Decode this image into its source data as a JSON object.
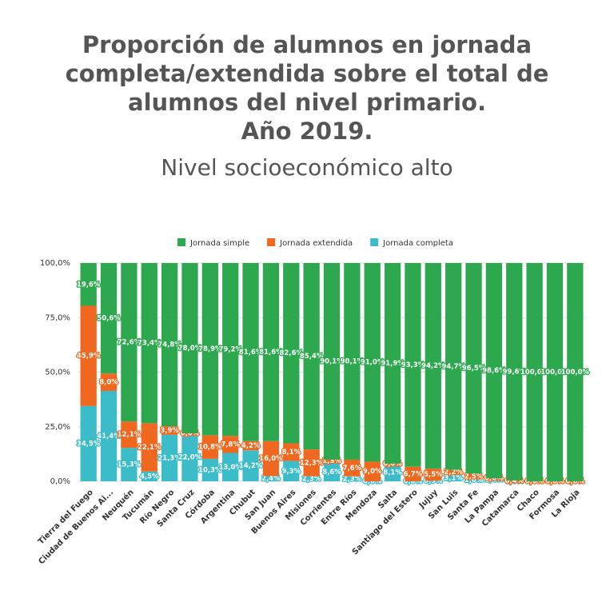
{
  "chart_data": {
    "type": "stacked_bar",
    "title": "Proporción de alumnos en jornada\ncompleta/extendida sobre el total de\nalumnos del nivel primario.\nAño 2019.",
    "subtitle": "Nivel socioeconómico alto",
    "categories": [
      "Tierra del Fuego",
      "Ciudad de Buenos Ai...",
      "Neuquén",
      "Tucumán",
      "Río Negro",
      "Santa Cruz",
      "Córdoba",
      "Argentina",
      "Chubut",
      "San Juan",
      "Buenos Aires",
      "Misiones",
      "Corrientes",
      "Entre Ríos",
      "Mendoza",
      "Salta",
      "Santiago del Estero",
      "Jujuy",
      "San Luis",
      "Santa Fe",
      "La Pampa",
      "Catamarca",
      "Chaco",
      "Formosa",
      "La Rioja"
    ],
    "series": [
      {
        "name": "Jornada simple",
        "color": "#2ea84f",
        "values": [
          19.6,
          50.6,
          72.6,
          73.4,
          74.8,
          78.0,
          78.9,
          79.2,
          81.6,
          81.6,
          82.6,
          85.4,
          90.1,
          90.1,
          91.0,
          91.9,
          93.3,
          94.2,
          94.7,
          96.5,
          98.6,
          99.6,
          100.0,
          100.0,
          100.0
        ],
        "value_labels": [
          "19,6%",
          "50,6%",
          "72,6%",
          "73,4%",
          "74,8%",
          "78,0%",
          "78,9%",
          "79,2%",
          "81,6%",
          "81,6%",
          "82,6%",
          "85,4%",
          "90,1%",
          "90,1%",
          "91,0%",
          "91,9%",
          "93,3%",
          "94,2%",
          "94,7%",
          "96,5%",
          "98,6%",
          "99,6%",
          "100,0%",
          "100,0%",
          "100,0%"
        ]
      },
      {
        "name": "Jornada extendida",
        "color": "#f0681f",
        "values": [
          45.9,
          8.0,
          12.1,
          22.1,
          3.9,
          0.0,
          10.8,
          7.8,
          4.2,
          16.0,
          8.1,
          12.3,
          1.3,
          7.6,
          9.0,
          0.0,
          6.7,
          5.5,
          2.2,
          2.5,
          0.0,
          0.4,
          0.0,
          0.0,
          0.0
        ],
        "value_labels": [
          "45,9%",
          "8,0%",
          "12,1%",
          "22,1%",
          "3,9%",
          "0,0%",
          "10,8%",
          "7,8%",
          "4,2%",
          "16,0%",
          "8,1%",
          "12,3%",
          "1,3%",
          "7,6%",
          "9,0%",
          "0,0%",
          "6,7%",
          "5,5%",
          "2,2%",
          "2,5%",
          "0,0%",
          "0,4%",
          "0,0%",
          "0,0%",
          "0,0%"
        ]
      },
      {
        "name": "Jornada completa",
        "color": "#3bbcc8",
        "values": [
          34.5,
          41.4,
          15.3,
          4.5,
          21.3,
          22.0,
          10.3,
          13.0,
          14.2,
          2.4,
          9.3,
          2.3,
          8.6,
          2.3,
          0.0,
          8.1,
          0.0,
          0.3,
          3.1,
          1.0,
          1.4,
          0.0,
          0.0,
          0.0,
          0.0
        ],
        "value_labels": [
          "34,5%",
          "41,4%",
          "15,3%",
          "4,5%",
          "21,3%",
          "22,0%",
          "10,3%",
          "13,0%",
          "14,2%",
          "2,4%",
          "9,3%",
          "2,3%",
          "8,6%",
          "2,3%",
          "0,0%",
          "8,1%",
          "0,0%",
          "0,3%",
          "3,1%",
          "1,0%",
          "1,4%",
          "0,0%",
          "0,0%",
          "0,0%",
          "0,0%"
        ]
      }
    ],
    "ylim": [
      0,
      100
    ],
    "yticks": [
      {
        "value": 0,
        "label": "0,0%"
      },
      {
        "value": 25,
        "label": "25,0%"
      },
      {
        "value": 50,
        "label": "50,0%"
      },
      {
        "value": 75,
        "label": "75,0%"
      },
      {
        "value": 100,
        "label": "100,0%"
      }
    ],
    "grid": true,
    "legend": "top"
  }
}
